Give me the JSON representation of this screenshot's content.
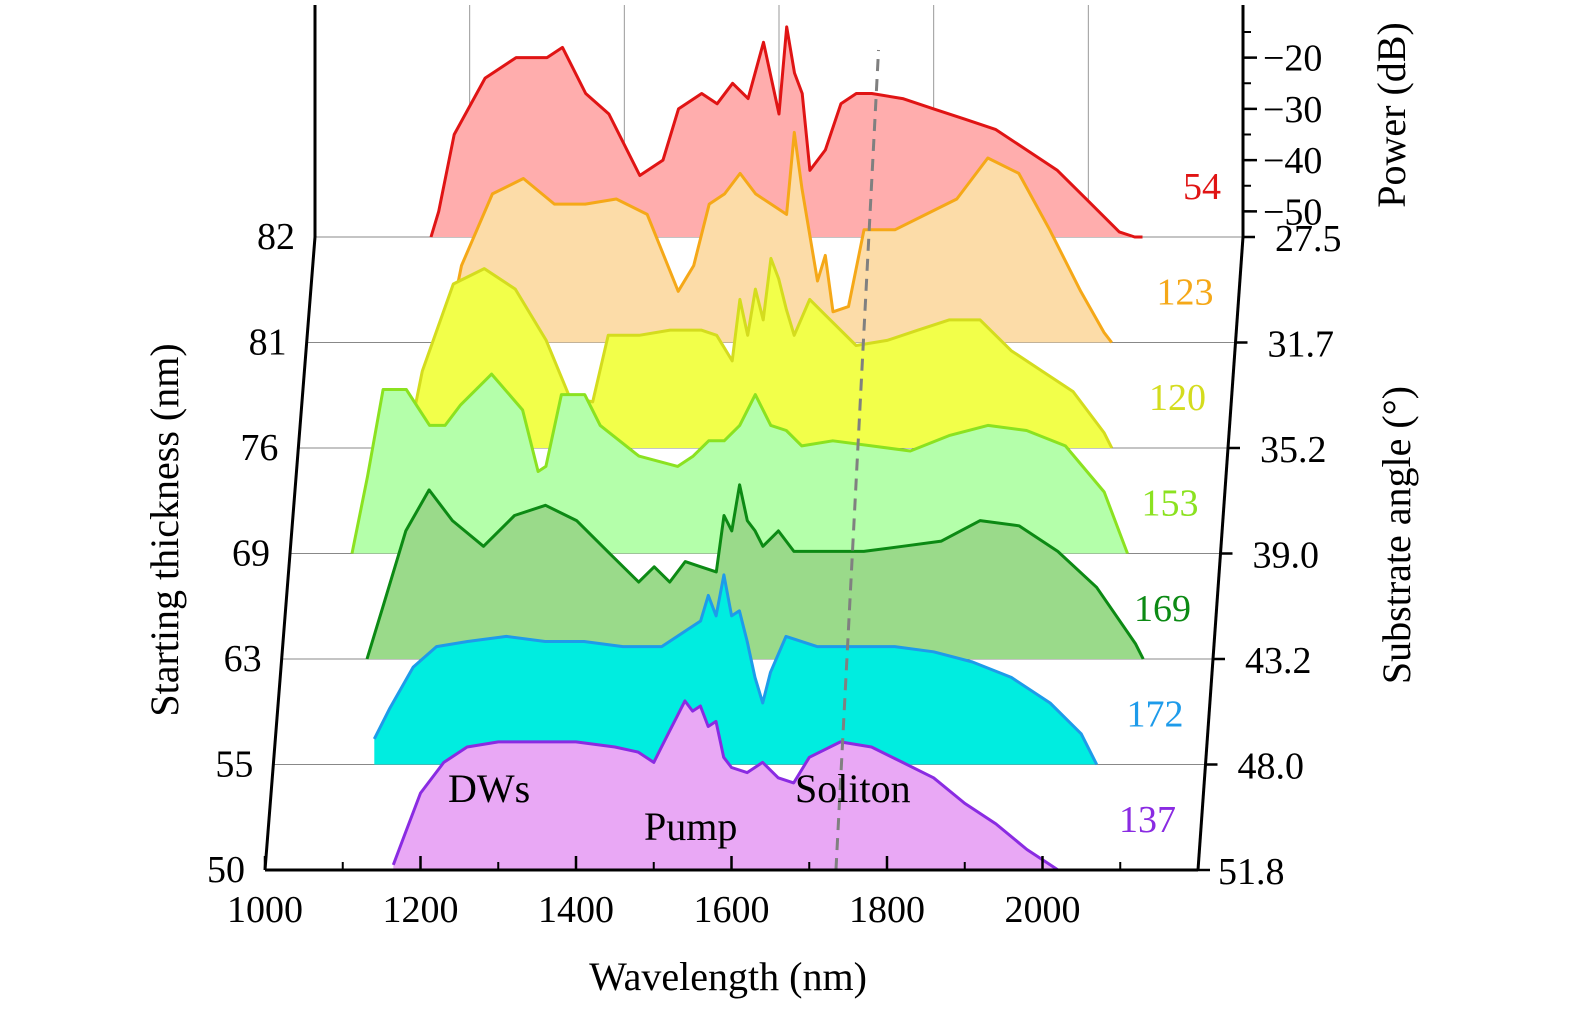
{
  "chart_data": {
    "type": "area",
    "xlabel": "Wavelength (nm)",
    "ylabel_left": "Starting thickness (nm)",
    "ylabel_right": "Substrate angle (°)",
    "zlabel": "Power (dB)",
    "xlim": [
      1000,
      2200
    ],
    "x_ticks": [
      "1000",
      "1200",
      "1400",
      "1600",
      "1800",
      "2000"
    ],
    "z_ticks": [
      "−20",
      "−30",
      "−40",
      "−50"
    ],
    "zlim": [
      -55,
      -15
    ],
    "pump_wavelength": 1580,
    "annotations": [
      "DWs",
      "Pump",
      "Soliton"
    ],
    "series": [
      {
        "label": "137",
        "thickness": "50",
        "angle": "51.8",
        "color": "#8a2be2",
        "fill": "#e9a8f5",
        "x": [
          1165,
          1180,
          1200,
          1230,
          1260,
          1300,
          1350,
          1400,
          1450,
          1480,
          1500,
          1510,
          1520,
          1530,
          1540,
          1550,
          1560,
          1570,
          1580,
          1590,
          1600,
          1620,
          1640,
          1660,
          1680,
          1700,
          1740,
          1780,
          1820,
          1860,
          1900,
          1940,
          1980,
          2010,
          2020
        ],
        "y": [
          -54,
          -48,
          -40,
          -34,
          -31,
          -30,
          -30,
          -30,
          -31,
          -32,
          -34,
          -31,
          -28,
          -25,
          -22,
          -24,
          -23,
          -27,
          -26,
          -33,
          -35,
          -36,
          -34,
          -37,
          -38,
          -33,
          -30,
          -31,
          -34,
          -37,
          -42,
          -46,
          -51,
          -54,
          -55
        ]
      },
      {
        "label": "172",
        "thickness": "55",
        "angle": "48.0",
        "color": "#1e9bea",
        "fill": "#00ede0",
        "x": [
          1130,
          1150,
          1180,
          1210,
          1250,
          1300,
          1350,
          1400,
          1450,
          1500,
          1530,
          1550,
          1560,
          1570,
          1580,
          1590,
          1600,
          1610,
          1620,
          1630,
          1640,
          1660,
          1700,
          1750,
          1800,
          1850,
          1900,
          1950,
          2000,
          2040,
          2060
        ],
        "y": [
          -50,
          -44,
          -36,
          -32,
          -31,
          -30,
          -31,
          -31,
          -32,
          -32,
          -29,
          -27,
          -22,
          -26,
          -18,
          -26,
          -25,
          -31,
          -38,
          -43,
          -37,
          -30,
          -32,
          -32,
          -32,
          -33,
          -35,
          -38,
          -43,
          -49,
          -55
        ]
      },
      {
        "label": "169",
        "thickness": "63",
        "angle": "43.2",
        "color": "#0c8a14",
        "fill": "#9ada8a",
        "x": [
          1110,
          1130,
          1160,
          1190,
          1220,
          1260,
          1300,
          1340,
          1380,
          1420,
          1460,
          1480,
          1500,
          1520,
          1540,
          1560,
          1570,
          1580,
          1590,
          1600,
          1610,
          1620,
          1640,
          1660,
          1700,
          1750,
          1800,
          1850,
          1900,
          1950,
          2000,
          2050,
          2100,
          2110
        ],
        "y": [
          -55,
          -45,
          -30,
          -22,
          -28,
          -33,
          -27,
          -25,
          -28,
          -34,
          -40,
          -37,
          -40,
          -36,
          -37,
          -38,
          -27,
          -30,
          -21,
          -28,
          -30,
          -33,
          -30,
          -34,
          -34,
          -34,
          -33,
          -32,
          -28,
          -29,
          -34,
          -41,
          -52,
          -55
        ]
      },
      {
        "label": "153",
        "thickness": "69",
        "angle": "39.0",
        "color": "#8be220",
        "fill": "#b4ffaa",
        "x": [
          1080,
          1100,
          1120,
          1150,
          1180,
          1200,
          1220,
          1260,
          1300,
          1320,
          1330,
          1350,
          1380,
          1400,
          1450,
          1500,
          1520,
          1540,
          1560,
          1580,
          1600,
          1620,
          1640,
          1660,
          1700,
          1750,
          1800,
          1850,
          1900,
          1950,
          2000,
          2050,
          2080
        ],
        "y": [
          -55,
          -40,
          -23,
          -23,
          -30,
          -30,
          -26,
          -20,
          -27,
          -39,
          -38,
          -24,
          -24,
          -30,
          -36,
          -38,
          -36,
          -33,
          -33,
          -30,
          -24,
          -30,
          -31,
          -34,
          -33,
          -34,
          -35,
          -32,
          -30,
          -31,
          -34,
          -43,
          -55
        ]
      },
      {
        "label": "120",
        "thickness": "76",
        "angle": "35.2",
        "color": "#d4dc1e",
        "fill": "#f2ff4a",
        "x": [
          1140,
          1160,
          1200,
          1240,
          1280,
          1320,
          1350,
          1380,
          1400,
          1420,
          1440,
          1480,
          1520,
          1540,
          1560,
          1570,
          1580,
          1590,
          1600,
          1610,
          1620,
          1630,
          1640,
          1660,
          1680,
          1720,
          1760,
          1800,
          1840,
          1880,
          1920,
          1960,
          2000,
          2040,
          2050
        ],
        "y": [
          -55,
          -40,
          -23,
          -20,
          -24,
          -34,
          -45,
          -46,
          -33,
          -33,
          -33,
          -32,
          -32,
          -33,
          -38,
          -26,
          -33,
          -24,
          -30,
          -18,
          -22,
          -28,
          -33,
          -26,
          -29,
          -35,
          -34,
          -32,
          -30,
          -30,
          -36,
          -40,
          -44,
          -52,
          -55
        ]
      },
      {
        "label": "123",
        "thickness": "81",
        "angle": "31.7",
        "color": "#f5a818",
        "fill": "#fcdca8",
        "x": [
          1180,
          1200,
          1240,
          1280,
          1320,
          1360,
          1400,
          1440,
          1480,
          1500,
          1520,
          1540,
          1560,
          1580,
          1600,
          1620,
          1630,
          1640,
          1660,
          1670,
          1680,
          1700,
          1720,
          1760,
          1800,
          1840,
          1880,
          1920,
          1960,
          2000,
          2030,
          2040
        ],
        "y": [
          -55,
          -40,
          -26,
          -23,
          -28,
          -28,
          -27,
          -30,
          -45,
          -40,
          -28,
          -26,
          -22,
          -26,
          -28,
          -30,
          -14,
          -25,
          -43,
          -38,
          -49,
          -48,
          -33,
          -33,
          -30,
          -27,
          -19,
          -22,
          -33,
          -45,
          -53,
          -55
        ]
      },
      {
        "label": "54",
        "thickness": "82",
        "angle": "27.5",
        "color": "#e01414",
        "fill": "#ffadad",
        "x": [
          1150,
          1160,
          1180,
          1220,
          1260,
          1300,
          1320,
          1350,
          1380,
          1420,
          1450,
          1470,
          1500,
          1520,
          1540,
          1560,
          1580,
          1600,
          1610,
          1620,
          1630,
          1640,
          1660,
          1680,
          1700,
          1720,
          1760,
          1800,
          1840,
          1880,
          1920,
          1960,
          2000,
          2040,
          2060,
          2070
        ],
        "y": [
          -55,
          -50,
          -35,
          -24,
          -20,
          -20,
          -18,
          -27,
          -31,
          -43,
          -40,
          -30,
          -27,
          -29,
          -25,
          -28,
          -17,
          -31,
          -14,
          -23,
          -27,
          -42,
          -38,
          -29,
          -27,
          -27,
          -28,
          -30,
          -32,
          -34,
          -38,
          -42,
          -48,
          -54,
          -55,
          -55
        ]
      }
    ]
  }
}
